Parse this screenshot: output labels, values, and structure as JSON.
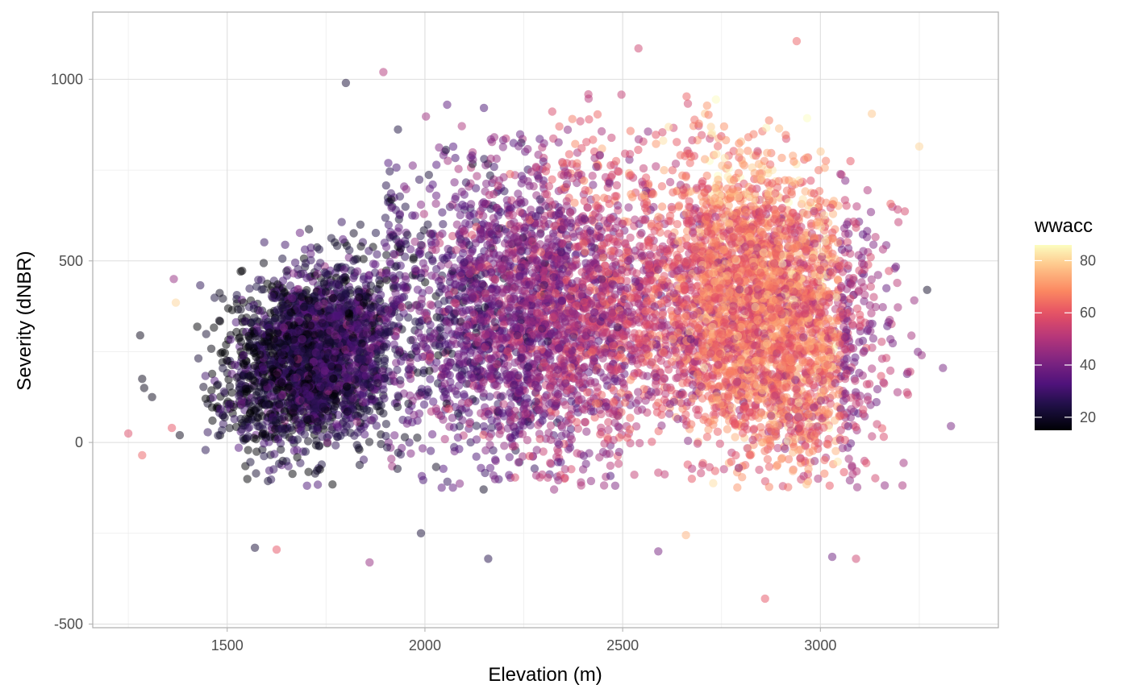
{
  "chart_data": {
    "type": "scatter",
    "xlabel": "Elevation (m)",
    "ylabel": "Severity (dNBR)",
    "xlim": [
      1160,
      3450
    ],
    "ylim": [
      -510,
      1185
    ],
    "x_ticks": [
      1500,
      2000,
      2500,
      3000
    ],
    "y_ticks": [
      -500,
      0,
      500,
      1000
    ],
    "x_tick_labels": [
      "1500",
      "2000",
      "2500",
      "3000"
    ],
    "y_tick_labels": [
      "-500",
      "0",
      "500",
      "1000"
    ],
    "grid": true,
    "point_alpha": 0.5,
    "point_count_approx": 30000,
    "color": {
      "variable": "wwacc",
      "palette": "magma",
      "range": [
        15,
        86
      ],
      "legend_ticks": [
        20,
        40,
        60,
        80
      ],
      "legend_tick_labels": [
        "20",
        "40",
        "60",
        "80"
      ],
      "legend_placement": "right"
    },
    "points_sample": [
      {
        "x": 1250,
        "y": 25,
        "c": 58
      },
      {
        "x": 1280,
        "y": 295,
        "c": 18
      },
      {
        "x": 1285,
        "y": 175,
        "c": 18
      },
      {
        "x": 1290,
        "y": 150,
        "c": 18
      },
      {
        "x": 1310,
        "y": 125,
        "c": 18
      },
      {
        "x": 1285,
        "y": -35,
        "c": 62
      },
      {
        "x": 1360,
        "y": 40,
        "c": 60
      },
      {
        "x": 1370,
        "y": 385,
        "c": 80
      },
      {
        "x": 1365,
        "y": 450,
        "c": 45
      },
      {
        "x": 1380,
        "y": 20,
        "c": 18
      },
      {
        "x": 1570,
        "y": -290,
        "c": 22
      },
      {
        "x": 1625,
        "y": -295,
        "c": 60
      },
      {
        "x": 1800,
        "y": 990,
        "c": 22
      },
      {
        "x": 1895,
        "y": 1020,
        "c": 50
      },
      {
        "x": 1860,
        "y": -330,
        "c": 45
      },
      {
        "x": 1990,
        "y": -250,
        "c": 22
      },
      {
        "x": 2160,
        "y": -320,
        "c": 25
      },
      {
        "x": 2540,
        "y": 1085,
        "c": 55
      },
      {
        "x": 2590,
        "y": -300,
        "c": 40
      },
      {
        "x": 2660,
        "y": -255,
        "c": 75
      },
      {
        "x": 2860,
        "y": -430,
        "c": 60
      },
      {
        "x": 2940,
        "y": 1105,
        "c": 62
      },
      {
        "x": 3030,
        "y": -315,
        "c": 38
      },
      {
        "x": 3090,
        "y": -320,
        "c": 55
      },
      {
        "x": 3130,
        "y": 905,
        "c": 78
      },
      {
        "x": 3250,
        "y": 815,
        "c": 80
      },
      {
        "x": 3270,
        "y": 420,
        "c": 20
      },
      {
        "x": 3310,
        "y": 205,
        "c": 40
      },
      {
        "x": 3330,
        "y": 45,
        "c": 40
      }
    ]
  }
}
